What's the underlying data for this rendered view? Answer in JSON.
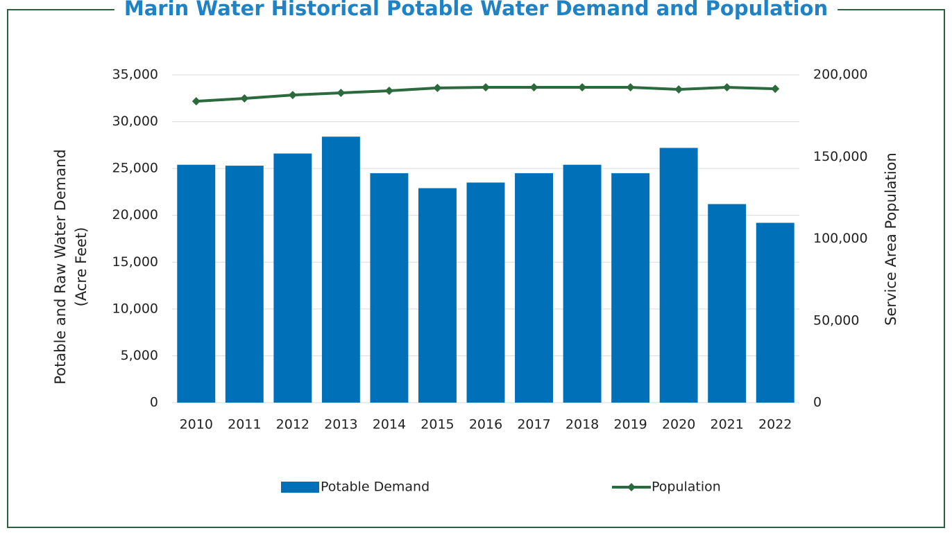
{
  "chart_data": {
    "type": "bar_line",
    "title": "Marin Water Historical Potable Water Demand and Population",
    "ylabel": [
      "Potable and Raw Water Demand",
      "(Acre Feet)"
    ],
    "y2label": "Service Area Population",
    "categories": [
      "2010",
      "2011",
      "2012",
      "2013",
      "2014",
      "2015",
      "2016",
      "2017",
      "2018",
      "2019",
      "2020",
      "2021",
      "2022"
    ],
    "series": [
      {
        "name": "Potable Demand",
        "type": "bar",
        "color": "#0070b8",
        "values": [
          25400,
          25300,
          26600,
          28400,
          24500,
          22900,
          23500,
          24500,
          25400,
          24500,
          27200,
          21200,
          19200
        ]
      },
      {
        "name": "Population",
        "type": "line",
        "axis": "y2",
        "color": "#2b6a3c",
        "values": [
          183900,
          185600,
          187700,
          189000,
          190300,
          192000,
          192400,
          192400,
          192400,
          192400,
          191100,
          192400,
          191500
        ]
      }
    ],
    "ylim": [
      0,
      35000
    ],
    "yticks": [
      0,
      {
        "value": 5000,
        "label": "5,000"
      },
      {
        "value": 10000,
        "label": "10,000"
      },
      {
        "value": 15000,
        "label": "15,000"
      },
      {
        "value": 20000,
        "label": "20,000"
      },
      {
        "value": 25000,
        "label": "25,000"
      },
      {
        "value": 30000,
        "label": "30,000"
      },
      {
        "value": 35000,
        "label": "35,000"
      }
    ],
    "y2lim": [
      0,
      200000
    ],
    "y2ticks": [
      0,
      {
        "value": 50000,
        "label": "50,000"
      },
      {
        "value": 100000,
        "label": "100,000"
      },
      {
        "value": 150000,
        "label": "150,000"
      },
      {
        "value": 200000,
        "label": "200,000"
      }
    ],
    "grid": true,
    "legend": "bottom"
  }
}
